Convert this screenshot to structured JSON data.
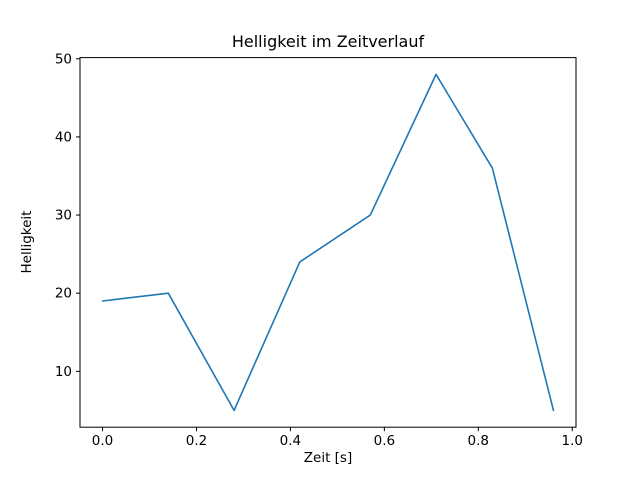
{
  "chart_data": {
    "type": "line",
    "title": "Helligkeit im Zeitverlauf",
    "xlabel": "Zeit [s]",
    "ylabel": "Helligkeit",
    "x": [
      0.0,
      0.14,
      0.28,
      0.42,
      0.57,
      0.71,
      0.83,
      0.96
    ],
    "y": [
      19,
      20,
      5,
      24,
      30,
      48,
      36,
      5
    ],
    "xlim": [
      -0.048,
      1.008
    ],
    "ylim": [
      2.85,
      50.15
    ],
    "xticks": [
      0.0,
      0.2,
      0.4,
      0.6,
      0.8,
      1.0
    ],
    "xtick_labels": [
      "0.0",
      "0.2",
      "0.4",
      "0.6",
      "0.8",
      "1.0"
    ],
    "yticks": [
      10,
      20,
      30,
      40,
      50
    ],
    "ytick_labels": [
      "10",
      "20",
      "30",
      "40",
      "50"
    ],
    "line_color": "#1f77b4",
    "spine_color": "#000000",
    "grid": false,
    "legend": null
  }
}
